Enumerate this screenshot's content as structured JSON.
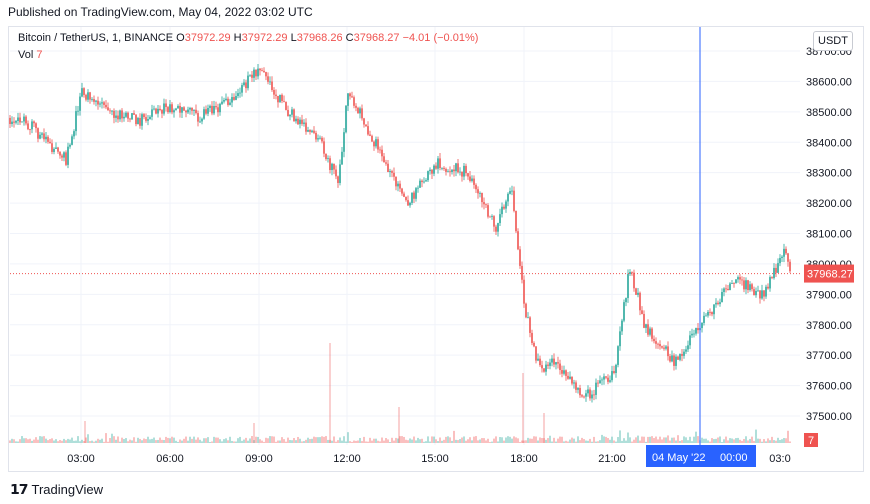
{
  "header": {
    "published": "Published on TradingView.com, May 04, 2022 03:02 UTC"
  },
  "legend": {
    "symbol": "Bitcoin / TetherUS, 1, BINANCE",
    "o_label": "O",
    "o": "37972.29",
    "h_label": "H",
    "h": "37972.29",
    "l_label": "L",
    "l": "37968.26",
    "c_label": "C",
    "c": "37968.27",
    "change": "−4.01 (−0.01%)",
    "vol_label": "Vol",
    "vol": "7"
  },
  "currency_badge": "USDT",
  "price_tag": "37968.27",
  "volume_tag": "7",
  "crosshair_date": "04 May '22",
  "crosshair_time": "00:00",
  "brand": "TradingView",
  "colors": {
    "up": "#26a69a",
    "down": "#ef5350",
    "crosshair": "#2962ff",
    "label_bg": "#2962ff"
  },
  "chart_data": {
    "type": "candlestick",
    "y_ticks": [
      "38700.00",
      "38600.00",
      "38500.00",
      "38400.00",
      "38300.00",
      "38200.00",
      "38100.00",
      "38000.00",
      "37900.00",
      "37800.00",
      "37700.00",
      "37600.00",
      "37500.00"
    ],
    "x_ticks": [
      "03:00",
      "06:00",
      "09:00",
      "12:00",
      "15:00",
      "18:00",
      "21:00",
      "03:0"
    ],
    "ylim": [
      37450,
      38735
    ],
    "last_price": 37968.27,
    "price_path_hourly": [
      [
        "01:00",
        38480
      ],
      [
        "02:00",
        38390
      ],
      [
        "02:30",
        38340
      ],
      [
        "03:00",
        38560
      ],
      [
        "04:00",
        38500
      ],
      [
        "05:00",
        38470
      ],
      [
        "06:00",
        38520
      ],
      [
        "07:00",
        38480
      ],
      [
        "08:00",
        38540
      ],
      [
        "09:00",
        38640
      ],
      [
        "10:00",
        38500
      ],
      [
        "11:00",
        38420
      ],
      [
        "11:40",
        38260
      ],
      [
        "12:00",
        38580
      ],
      [
        "13:00",
        38380
      ],
      [
        "14:00",
        38200
      ],
      [
        "15:00",
        38330
      ],
      [
        "16:00",
        38300
      ],
      [
        "17:00",
        38120
      ],
      [
        "17:30",
        38260
      ],
      [
        "18:00",
        37830
      ],
      [
        "18:30",
        37640
      ],
      [
        "19:00",
        37680
      ],
      [
        "20:00",
        37560
      ],
      [
        "21:00",
        37650
      ],
      [
        "21:30",
        37990
      ],
      [
        "22:00",
        37800
      ],
      [
        "23:00",
        37680
      ],
      [
        "00:00",
        37810
      ],
      [
        "01:00",
        37950
      ],
      [
        "02:00",
        37900
      ],
      [
        "02:40",
        38040
      ],
      [
        "03:02",
        37968.27
      ]
    ],
    "grid": true,
    "volume_panel": true
  }
}
